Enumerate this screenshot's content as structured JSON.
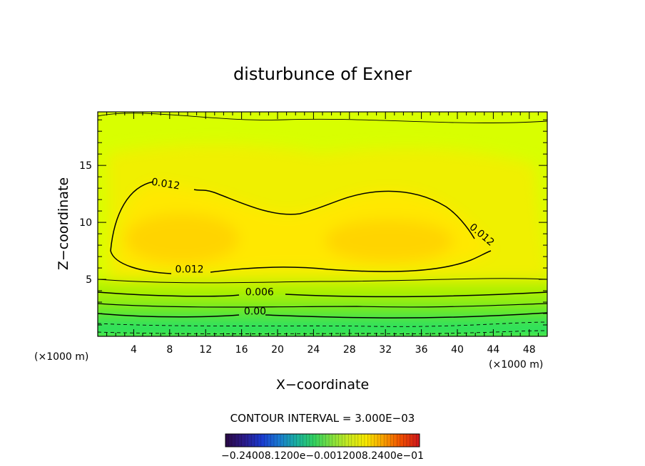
{
  "chart_data": {
    "type": "contour",
    "title": "disturbunce of Exner",
    "xlabel": "X−coordinate",
    "ylabel": "Z−coordinate",
    "x_unit_label": "(×1000 m)",
    "xlim": [
      0,
      50
    ],
    "ylim": [
      0,
      19.7
    ],
    "x_ticks": [
      4,
      8,
      12,
      16,
      20,
      24,
      28,
      32,
      36,
      40,
      44,
      48
    ],
    "y_ticks": [
      5,
      10,
      15
    ],
    "contour_interval_text": "CONTOUR INTERVAL = 3.000E−03",
    "contour_labels": [
      {
        "text": "0.012",
        "x": 7.5,
        "z": 13.1
      },
      {
        "text": "0.012",
        "x": 42.5,
        "z": 8.7
      },
      {
        "text": "0.012",
        "x": 10.2,
        "z": 5.6
      },
      {
        "text": "0.006",
        "x": 18,
        "z": 3.6
      },
      {
        "text": "0.00",
        "x": 17.5,
        "z": 1.9
      }
    ],
    "colorbar": {
      "labels_text": "−0.24008.1200e−0.0012008.2400e−01",
      "colors": [
        "#2a0a4a",
        "#2a1a8a",
        "#1a3ad0",
        "#1a7ad0",
        "#1ab0a0",
        "#30d060",
        "#80e040",
        "#c8e820",
        "#f8e800",
        "#f8a000",
        "#f05000",
        "#d01a1a"
      ]
    },
    "colors": {
      "max_core": "#ffd400",
      "inner": "#ffe800",
      "mid": "#f0f000",
      "upper": "#d8ff00",
      "low1": "#a8f000",
      "low2": "#60e820",
      "low3": "#20e060"
    }
  }
}
